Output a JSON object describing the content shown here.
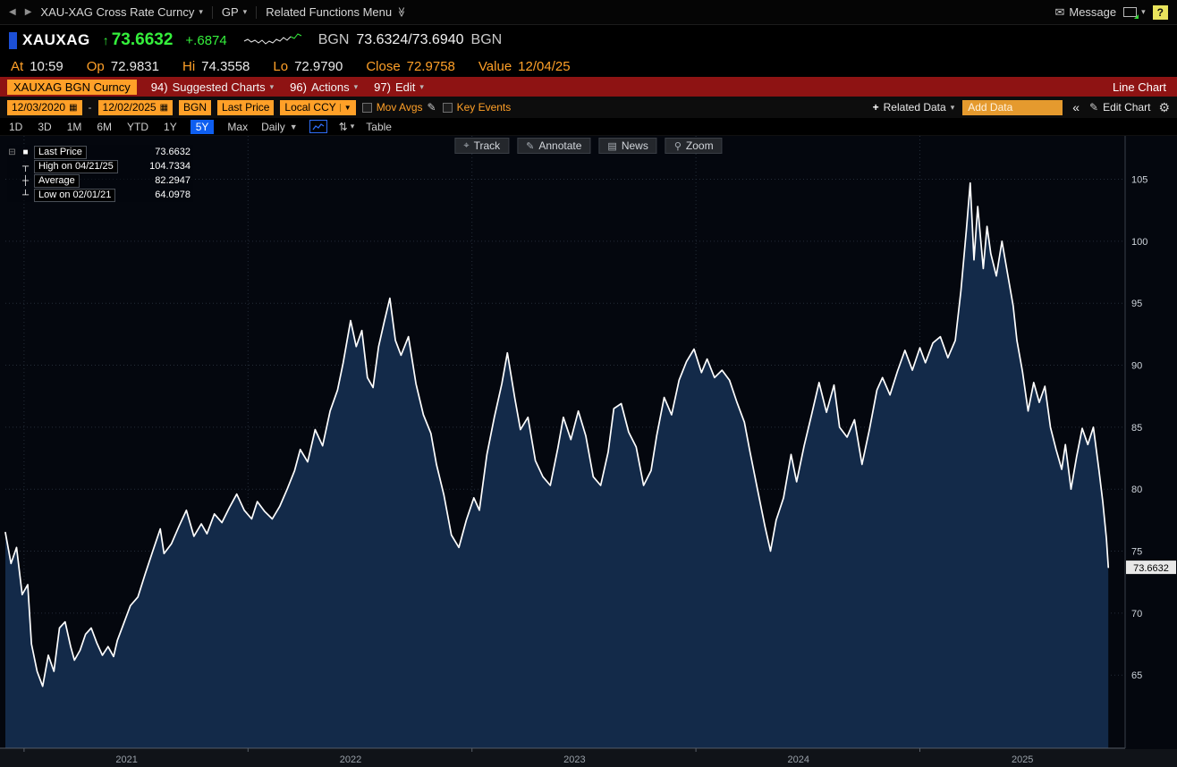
{
  "colors": {
    "amber": "#ffa028",
    "green": "#35f03c",
    "red_bar": "#8e1313",
    "blue_accent": "#0e5ef0",
    "chart_fill": "#132a49",
    "chart_line": "#ffffff",
    "chart_bg": "#04070e"
  },
  "top_bar": {
    "back": "◀",
    "forward": "▶",
    "security_menu": "XAU-XAG Cross Rate Curncy",
    "function_menu": "GP",
    "related_functions": "Related Functions Menu",
    "message": "Message",
    "help": "?"
  },
  "quote": {
    "ticker": "XAUXAG",
    "arrow": "↑",
    "last": "73.6632",
    "change": "+.6874",
    "bid_ask_prefix": "BGN",
    "bid_ask": "73.6324/73.6940",
    "bid_ask_suffix": "BGN",
    "stats": [
      {
        "label": "At",
        "value": "10:59",
        "value_color": "#e8e8e8"
      },
      {
        "label": "Op",
        "value": "72.9831",
        "value_color": "#e8e8e8"
      },
      {
        "label": "Hi",
        "value": "74.3558",
        "value_color": "#e8e8e8"
      },
      {
        "label": "Lo",
        "value": "72.9790",
        "value_color": "#e8e8e8"
      },
      {
        "label": "Close",
        "value": "72.9758",
        "value_color": "#ffa028"
      },
      {
        "label": "Value",
        "value": "12/04/25",
        "value_color": "#ffa028"
      }
    ]
  },
  "function_bar": {
    "security_field": "XAUXAG BGN Curncy",
    "menus": [
      {
        "key": "94)",
        "label": "Suggested Charts"
      },
      {
        "key": "96)",
        "label": "Actions"
      },
      {
        "key": "97)",
        "label": "Edit"
      }
    ],
    "chart_type": "Line Chart"
  },
  "settings_bar": {
    "date_from": "12/03/2020",
    "date_separator": "-",
    "date_to": "12/02/2025",
    "source": "BGN",
    "price_field": "Last Price",
    "currency": "Local CCY",
    "mov_avgs_label": "Mov Avgs",
    "key_events_label": "Key Events",
    "related_data_label": "Related Data",
    "add_data_placeholder": "Add Data",
    "collapse_label": "«",
    "edit_chart_label": "Edit Chart"
  },
  "period_bar": {
    "tabs": [
      "1D",
      "3D",
      "1M",
      "6M",
      "YTD",
      "1Y",
      "5Y",
      "Max"
    ],
    "active_tab": "5Y",
    "frequency": "Daily",
    "table_label": "Table"
  },
  "chart_tools": [
    "Track",
    "Annotate",
    "News",
    "Zoom"
  ],
  "legend": {
    "rows": [
      {
        "marker": "■",
        "label": "Last Price",
        "value": "73.6632"
      },
      {
        "marker": "┬",
        "label": "High on 04/21/25",
        "value": "104.7334"
      },
      {
        "marker": "┼",
        "label": "Average",
        "value": "82.2947"
      },
      {
        "marker": "┴",
        "label": "Low on 02/01/21",
        "value": "64.0978"
      }
    ]
  },
  "chart_data": {
    "type": "area",
    "title": "XAUXAG BGN Curncy — Last Price, 5Y Daily, Line Chart",
    "series_name": "Last Price",
    "x_unit": "months since Dec 2020",
    "x_range": [
      0,
      60
    ],
    "ylim": [
      59.1,
      108.5
    ],
    "yticks": [
      65,
      70,
      75,
      80,
      85,
      90,
      95,
      100,
      105
    ],
    "year_gridlines_m": [
      1,
      13,
      25,
      37,
      49
    ],
    "year_labels": [
      {
        "label": "2021",
        "m": 6.5
      },
      {
        "label": "2022",
        "m": 18.5
      },
      {
        "label": "2023",
        "m": 30.5
      },
      {
        "label": "2024",
        "m": 42.5
      },
      {
        "label": "2025",
        "m": 54.5
      }
    ],
    "last_price": 73.6632,
    "high": {
      "date": "04/21/25",
      "value": 104.7334
    },
    "average": 82.2947,
    "low": {
      "date": "02/01/21",
      "value": 64.0978
    },
    "points": [
      [
        0,
        76.5
      ],
      [
        0.3,
        74.0
      ],
      [
        0.6,
        75.3
      ],
      [
        0.9,
        71.5
      ],
      [
        1.2,
        72.3
      ],
      [
        1.4,
        67.5
      ],
      [
        1.7,
        65.3
      ],
      [
        2.0,
        64.1
      ],
      [
        2.3,
        66.6
      ],
      [
        2.6,
        65.3
      ],
      [
        2.9,
        68.8
      ],
      [
        3.2,
        69.3
      ],
      [
        3.5,
        67.3
      ],
      [
        3.7,
        66.2
      ],
      [
        4.0,
        67.0
      ],
      [
        4.3,
        68.3
      ],
      [
        4.6,
        68.8
      ],
      [
        4.9,
        67.6
      ],
      [
        5.2,
        66.6
      ],
      [
        5.5,
        67.3
      ],
      [
        5.8,
        66.5
      ],
      [
        6.0,
        67.8
      ],
      [
        6.3,
        69.0
      ],
      [
        6.7,
        70.6
      ],
      [
        7.1,
        71.3
      ],
      [
        7.5,
        73.2
      ],
      [
        7.9,
        75.0
      ],
      [
        8.3,
        76.8
      ],
      [
        8.5,
        74.8
      ],
      [
        8.9,
        75.6
      ],
      [
        9.3,
        77.0
      ],
      [
        9.7,
        78.3
      ],
      [
        10.1,
        76.2
      ],
      [
        10.5,
        77.2
      ],
      [
        10.8,
        76.4
      ],
      [
        11.2,
        78.0
      ],
      [
        11.6,
        77.3
      ],
      [
        12.0,
        78.5
      ],
      [
        12.4,
        79.6
      ],
      [
        12.8,
        78.3
      ],
      [
        13.2,
        77.6
      ],
      [
        13.5,
        79.0
      ],
      [
        13.9,
        78.2
      ],
      [
        14.3,
        77.6
      ],
      [
        14.7,
        78.6
      ],
      [
        15.1,
        80.0
      ],
      [
        15.5,
        81.5
      ],
      [
        15.8,
        83.2
      ],
      [
        16.2,
        82.2
      ],
      [
        16.6,
        84.8
      ],
      [
        17.0,
        83.5
      ],
      [
        17.4,
        86.3
      ],
      [
        17.8,
        88.0
      ],
      [
        18.1,
        90.2
      ],
      [
        18.5,
        93.6
      ],
      [
        18.8,
        91.5
      ],
      [
        19.1,
        92.8
      ],
      [
        19.4,
        89.0
      ],
      [
        19.7,
        88.2
      ],
      [
        20.0,
        91.5
      ],
      [
        20.3,
        93.5
      ],
      [
        20.6,
        95.4
      ],
      [
        20.9,
        92.0
      ],
      [
        21.2,
        90.8
      ],
      [
        21.6,
        92.3
      ],
      [
        22.0,
        88.5
      ],
      [
        22.4,
        86.0
      ],
      [
        22.8,
        84.5
      ],
      [
        23.1,
        82.0
      ],
      [
        23.5,
        79.5
      ],
      [
        23.9,
        76.3
      ],
      [
        24.3,
        75.3
      ],
      [
        24.7,
        77.5
      ],
      [
        25.1,
        79.3
      ],
      [
        25.4,
        78.3
      ],
      [
        25.8,
        82.8
      ],
      [
        26.2,
        85.8
      ],
      [
        26.6,
        88.5
      ],
      [
        26.9,
        91.0
      ],
      [
        27.3,
        87.3
      ],
      [
        27.6,
        84.8
      ],
      [
        28.0,
        85.8
      ],
      [
        28.4,
        82.3
      ],
      [
        28.8,
        81.0
      ],
      [
        29.2,
        80.3
      ],
      [
        29.6,
        83.3
      ],
      [
        29.9,
        85.8
      ],
      [
        30.3,
        84.0
      ],
      [
        30.7,
        86.3
      ],
      [
        31.1,
        84.3
      ],
      [
        31.5,
        81.0
      ],
      [
        31.9,
        80.3
      ],
      [
        32.3,
        83.0
      ],
      [
        32.6,
        86.5
      ],
      [
        33.0,
        86.9
      ],
      [
        33.4,
        84.6
      ],
      [
        33.8,
        83.4
      ],
      [
        34.2,
        80.3
      ],
      [
        34.6,
        81.5
      ],
      [
        34.9,
        84.3
      ],
      [
        35.3,
        87.4
      ],
      [
        35.7,
        86.0
      ],
      [
        36.1,
        88.8
      ],
      [
        36.5,
        90.3
      ],
      [
        36.9,
        91.3
      ],
      [
        37.3,
        89.4
      ],
      [
        37.6,
        90.5
      ],
      [
        38.0,
        89.0
      ],
      [
        38.4,
        89.6
      ],
      [
        38.8,
        88.8
      ],
      [
        39.2,
        87.0
      ],
      [
        39.6,
        85.4
      ],
      [
        39.9,
        83.0
      ],
      [
        40.3,
        80.0
      ],
      [
        40.7,
        77.0
      ],
      [
        41.0,
        75.0
      ],
      [
        41.3,
        77.5
      ],
      [
        41.7,
        79.3
      ],
      [
        42.1,
        82.8
      ],
      [
        42.4,
        80.6
      ],
      [
        42.8,
        83.5
      ],
      [
        43.2,
        86.0
      ],
      [
        43.6,
        88.6
      ],
      [
        44.0,
        86.2
      ],
      [
        44.4,
        88.4
      ],
      [
        44.7,
        85.0
      ],
      [
        45.1,
        84.2
      ],
      [
        45.5,
        85.6
      ],
      [
        45.9,
        82.0
      ],
      [
        46.3,
        84.8
      ],
      [
        46.7,
        88.0
      ],
      [
        47.0,
        89.0
      ],
      [
        47.4,
        87.6
      ],
      [
        47.8,
        89.5
      ],
      [
        48.2,
        91.2
      ],
      [
        48.6,
        89.6
      ],
      [
        49.0,
        91.4
      ],
      [
        49.3,
        90.2
      ],
      [
        49.7,
        91.8
      ],
      [
        50.1,
        92.3
      ],
      [
        50.5,
        90.6
      ],
      [
        50.9,
        92.0
      ],
      [
        51.2,
        96.0
      ],
      [
        51.5,
        101.0
      ],
      [
        51.7,
        104.7
      ],
      [
        51.9,
        98.5
      ],
      [
        52.1,
        102.8
      ],
      [
        52.4,
        97.8
      ],
      [
        52.6,
        101.2
      ],
      [
        52.8,
        99.0
      ],
      [
        53.1,
        97.2
      ],
      [
        53.4,
        100.0
      ],
      [
        53.7,
        97.4
      ],
      [
        54.0,
        94.8
      ],
      [
        54.2,
        92.0
      ],
      [
        54.5,
        89.5
      ],
      [
        54.8,
        86.3
      ],
      [
        55.1,
        88.6
      ],
      [
        55.4,
        87.0
      ],
      [
        55.7,
        88.3
      ],
      [
        56.0,
        85.0
      ],
      [
        56.3,
        83.2
      ],
      [
        56.6,
        81.6
      ],
      [
        56.8,
        83.6
      ],
      [
        57.1,
        80.0
      ],
      [
        57.4,
        82.6
      ],
      [
        57.7,
        84.9
      ],
      [
        58.0,
        83.6
      ],
      [
        58.3,
        85.0
      ],
      [
        58.6,
        81.5
      ],
      [
        58.8,
        79.0
      ],
      [
        59.0,
        76.0
      ],
      [
        59.1,
        73.7
      ]
    ]
  }
}
